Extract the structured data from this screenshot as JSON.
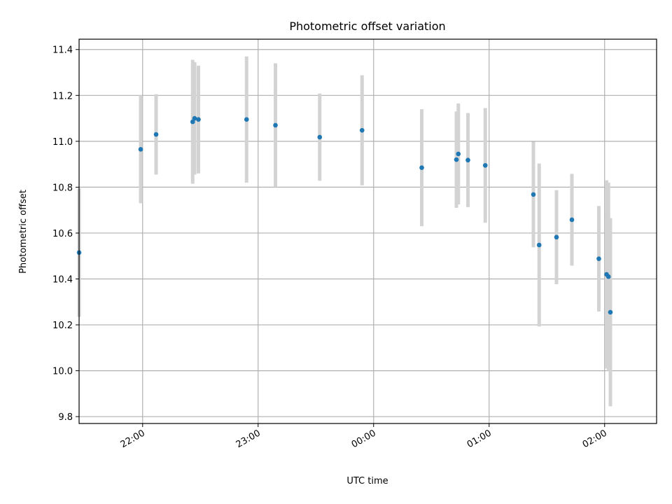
{
  "chart_data": {
    "type": "scatter",
    "title": "Photometric offset variation",
    "xlabel": "UTC time",
    "ylabel": "Photometric offset",
    "x_ticks": [
      "22:00",
      "23:00",
      "00:00",
      "01:00",
      "02:00"
    ],
    "y_ticks": [
      "9.8",
      "10.0",
      "10.2",
      "10.4",
      "10.6",
      "10.8",
      "11.0",
      "11.2",
      "11.4"
    ],
    "x_range": [
      "21:27",
      "02:27"
    ],
    "ylim": [
      9.77,
      11.445
    ],
    "grid": true,
    "colors": {
      "point": "#1f77b4",
      "errorbar": "#d3d3d3"
    },
    "points": [
      {
        "x": "21:27",
        "y": 10.515,
        "err": 0.28
      },
      {
        "x": "21:59",
        "y": 10.965,
        "err": 0.235
      },
      {
        "x": "22:07",
        "y": 11.03,
        "err": 0.175
      },
      {
        "x": "22:26",
        "y": 11.085,
        "err": 0.27
      },
      {
        "x": "22:27",
        "y": 11.1,
        "err": 0.245
      },
      {
        "x": "22:29",
        "y": 11.095,
        "err": 0.235
      },
      {
        "x": "22:54",
        "y": 11.095,
        "err": 0.275
      },
      {
        "x": "23:09",
        "y": 11.07,
        "err": 0.27
      },
      {
        "x": "23:32",
        "y": 11.018,
        "err": 0.19
      },
      {
        "x": "23:54",
        "y": 11.048,
        "err": 0.24
      },
      {
        "x": "00:25",
        "y": 10.885,
        "err": 0.255
      },
      {
        "x": "00:43",
        "y": 10.92,
        "err": 0.21
      },
      {
        "x": "00:44",
        "y": 10.945,
        "err": 0.22
      },
      {
        "x": "00:49",
        "y": 10.918,
        "err": 0.205
      },
      {
        "x": "00:58",
        "y": 10.895,
        "err": 0.25
      },
      {
        "x": "01:23",
        "y": 10.768,
        "err": 0.23
      },
      {
        "x": "01:26",
        "y": 10.548,
        "err": 0.355
      },
      {
        "x": "01:35",
        "y": 10.582,
        "err": 0.205
      },
      {
        "x": "01:43",
        "y": 10.658,
        "err": 0.2
      },
      {
        "x": "01:57",
        "y": 10.488,
        "err": 0.23
      },
      {
        "x": "02:01",
        "y": 10.42,
        "err": 0.41
      },
      {
        "x": "02:02",
        "y": 10.41,
        "err": 0.41
      },
      {
        "x": "02:03",
        "y": 10.255,
        "err": 0.41
      }
    ]
  }
}
